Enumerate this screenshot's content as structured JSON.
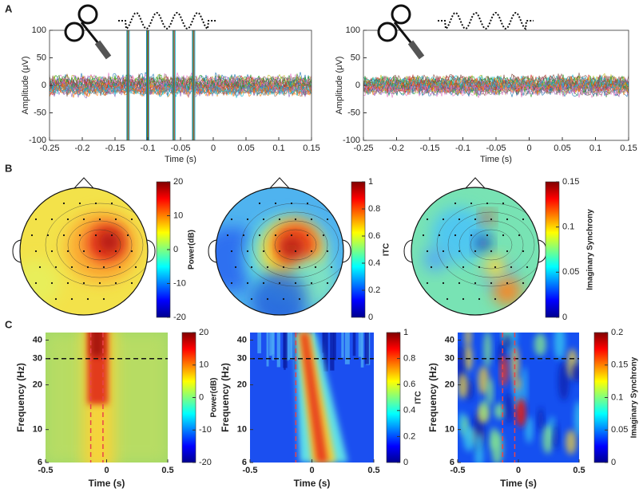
{
  "panels": [
    "A",
    "B",
    "C"
  ],
  "chart_data": [
    {
      "type": "line",
      "xlabel": "Time (s)",
      "ylabel": "Amplitude (μV)",
      "xlim": [
        -0.25,
        0.15
      ],
      "xticks": [
        -0.25,
        -0.2,
        -0.15,
        -0.1,
        -0.05,
        0,
        0.05,
        0.1,
        0.15
      ],
      "ylim": [
        -100,
        100
      ],
      "yticks": [
        -100,
        -50,
        0,
        50,
        100
      ]
    },
    {
      "type": "line",
      "xlabel": "Time (s)",
      "ylabel": "Amplitude (μV)",
      "xlim": [
        -0.25,
        0.15
      ],
      "xticks": [
        -0.25,
        -0.2,
        -0.15,
        -0.1,
        -0.05,
        0,
        0.05,
        0.1,
        0.15
      ],
      "ylim": [
        -100,
        100
      ],
      "yticks": [
        -100,
        -50,
        0,
        50,
        100
      ]
    },
    {
      "type": "topoplot",
      "colorbar_label": "Power(dB)",
      "clim": [
        -20,
        20
      ],
      "cticks": [
        -20,
        -10,
        0,
        10,
        20
      ]
    },
    {
      "type": "topoplot",
      "colorbar_label": "ITC",
      "clim": [
        0,
        1
      ],
      "cticks": [
        0,
        0.2,
        0.4,
        0.6,
        0.8,
        1
      ]
    },
    {
      "type": "topoplot",
      "colorbar_label": "Imaginary Synchrony",
      "clim": [
        0,
        0.15
      ],
      "cticks": [
        0,
        0.05,
        0.1,
        0.15
      ]
    },
    {
      "type": "heatmap",
      "xlabel": "Time (s)",
      "ylabel": "Frequency (Hz)",
      "log_y": true,
      "xlim": [
        -0.5,
        0.5
      ],
      "xticks": [
        -0.5,
        0,
        0.5
      ],
      "ylim": [
        6,
        45
      ],
      "yticks": [
        6,
        10,
        20,
        30,
        40
      ],
      "hline": 30,
      "vlines": [
        -0.13,
        -0.03
      ],
      "colorbar_label": "Power(dB)",
      "clim": [
        -20,
        20
      ],
      "cticks": [
        -20,
        -10,
        0,
        10,
        20
      ]
    },
    {
      "type": "heatmap",
      "xlabel": "Time (s)",
      "ylabel": "Frequency (Hz)",
      "log_y": true,
      "xlim": [
        -0.5,
        0.5
      ],
      "xticks": [
        -0.5,
        0,
        0.5
      ],
      "ylim": [
        6,
        45
      ],
      "yticks": [
        6,
        10,
        20,
        30,
        40
      ],
      "hline": 30,
      "vlines": [
        -0.13
      ],
      "colorbar_label": "ITC",
      "clim": [
        0,
        1
      ],
      "cticks": [
        0,
        0.2,
        0.4,
        0.6,
        0.8,
        1
      ]
    },
    {
      "type": "heatmap",
      "xlabel": "Time (s)",
      "ylabel": "Frequency (Hz)",
      "log_y": true,
      "xlim": [
        -0.5,
        0.5
      ],
      "xticks": [
        -0.5,
        0,
        0.5
      ],
      "ylim": [
        6,
        45
      ],
      "yticks": [
        6,
        10,
        20,
        30,
        40
      ],
      "hline": 30,
      "vlines": [
        -0.13,
        -0.03
      ],
      "colorbar_label": "Imaginary Synchrony",
      "clim": [
        0,
        0.2
      ],
      "cticks": [
        0,
        0.05,
        0.1,
        0.15,
        0.2
      ]
    }
  ]
}
